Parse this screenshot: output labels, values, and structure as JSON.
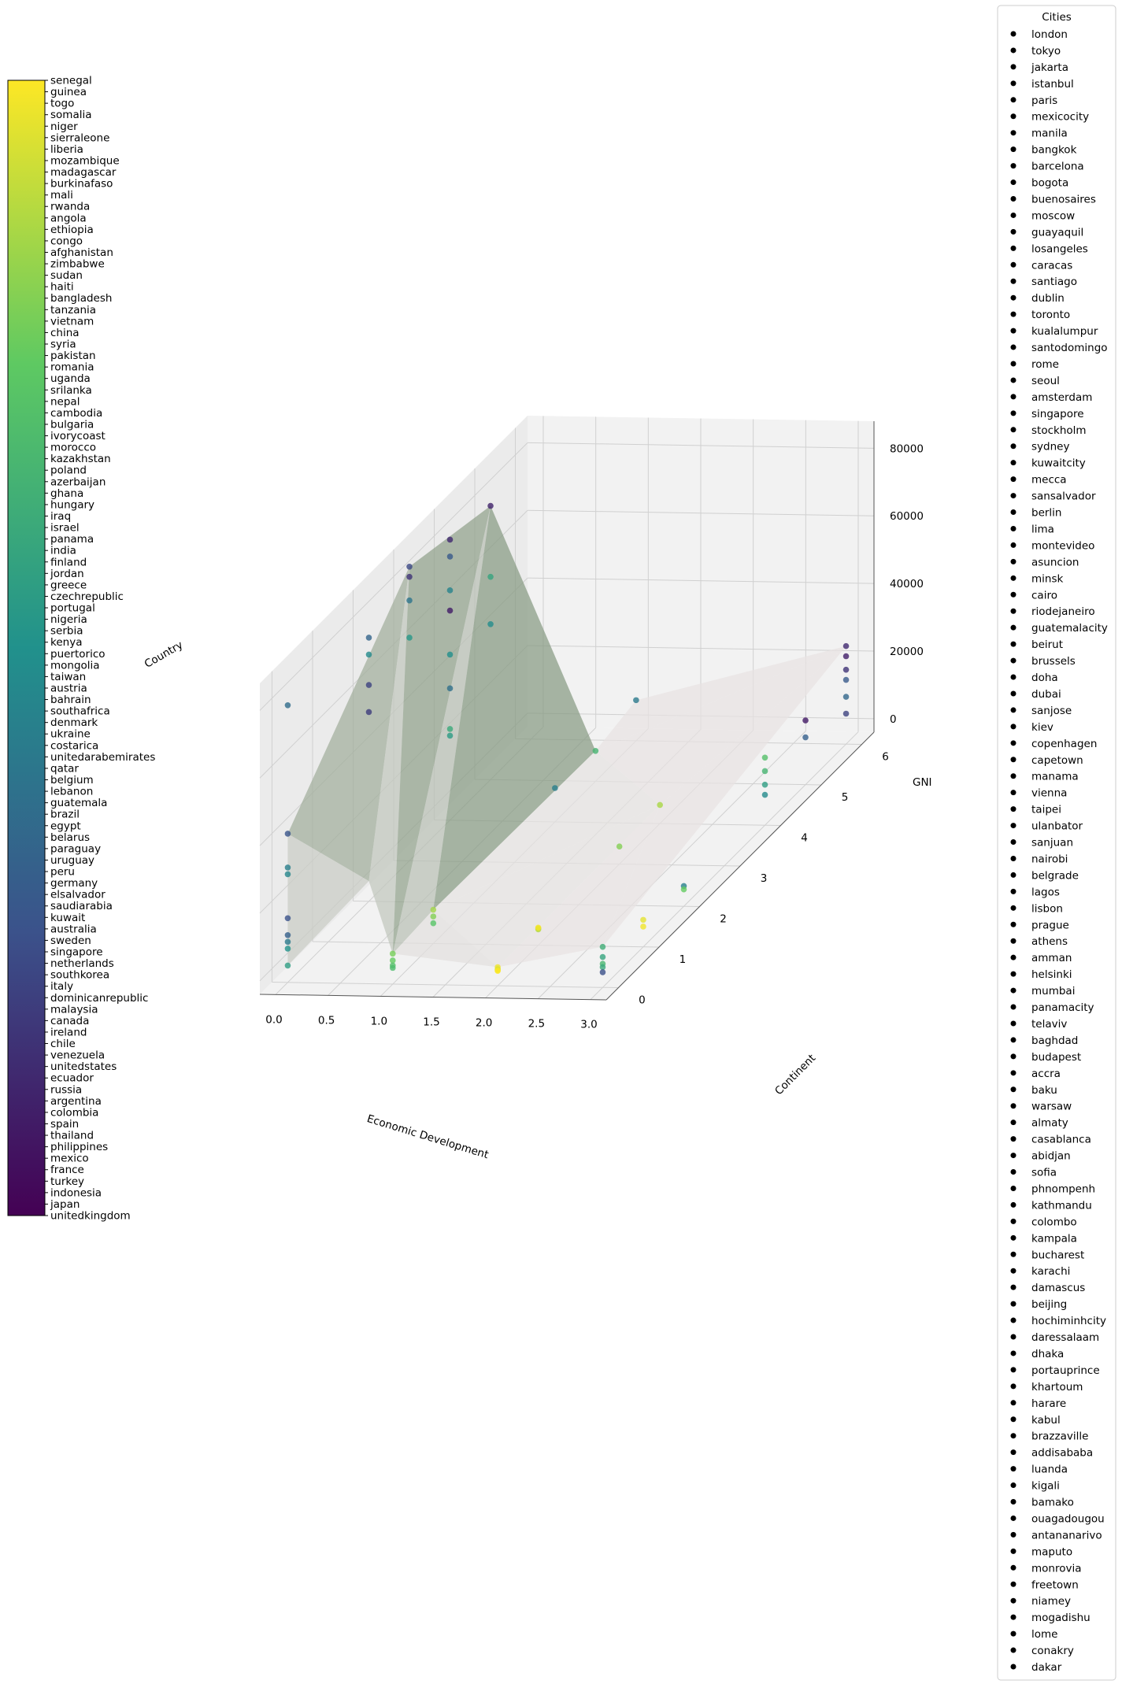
{
  "chart_data": {
    "type": "scatter",
    "subtype": "3d-scatter-with-surface",
    "title": "",
    "xlabel": "Economic Development",
    "ylabel": "Continent",
    "zlabel": "GNI",
    "colorbar_label": "Country",
    "legend_title": "Cities",
    "legend_placement": "right, outside plot",
    "grid": true,
    "xlim": [
      -0.15,
      3.15
    ],
    "ylim": [
      -0.3,
      6.3
    ],
    "zlim": [
      -4000,
      88000
    ],
    "xticks": [
      "0.0",
      "0.5",
      "1.0",
      "1.5",
      "2.0",
      "2.5",
      "3.0"
    ],
    "yticks": [
      "0",
      "1",
      "2",
      "3",
      "4",
      "5",
      "6"
    ],
    "zticks": [
      "0",
      "20000",
      "40000",
      "60000",
      "80000"
    ],
    "xtick_values": [
      0,
      0.5,
      1,
      1.5,
      2,
      2.5,
      3
    ],
    "ytick_values": [
      0,
      1,
      2,
      3,
      4,
      5,
      6
    ],
    "ztick_values": [
      0,
      20000,
      40000,
      60000,
      80000
    ],
    "colormap": [
      "#440154",
      "#3b528b",
      "#21918c",
      "#5ec962",
      "#fde725"
    ],
    "surface_color": "#90c690",
    "countries": [
      "unitedkingdom",
      "japan",
      "indonesia",
      "turkey",
      "france",
      "mexico",
      "philippines",
      "thailand",
      "spain",
      "colombia",
      "argentina",
      "russia",
      "ecuador",
      "unitedstates",
      "venezuela",
      "chile",
      "ireland",
      "canada",
      "malaysia",
      "dominicanrepublic",
      "italy",
      "southkorea",
      "netherlands",
      "singapore",
      "sweden",
      "australia",
      "kuwait",
      "saudiarabia",
      "elsalvador",
      "germany",
      "peru",
      "uruguay",
      "paraguay",
      "belarus",
      "egypt",
      "brazil",
      "guatemala",
      "lebanon",
      "belgium",
      "qatar",
      "unitedarabemirates",
      "costarica",
      "ukraine",
      "denmark",
      "southafrica",
      "bahrain",
      "austria",
      "taiwan",
      "mongolia",
      "puertorico",
      "kenya",
      "serbia",
      "nigeria",
      "portugal",
      "czechrepublic",
      "greece",
      "jordan",
      "finland",
      "india",
      "panama",
      "israel",
      "iraq",
      "hungary",
      "ghana",
      "azerbaijan",
      "poland",
      "kazakhstan",
      "morocco",
      "ivorycoast",
      "bulgaria",
      "cambodia",
      "nepal",
      "srilanka",
      "uganda",
      "romania",
      "pakistan",
      "syria",
      "china",
      "vietnam",
      "tanzania",
      "bangladesh",
      "haiti",
      "sudan",
      "zimbabwe",
      "afghanistan",
      "congo",
      "ethiopia",
      "angola",
      "rwanda",
      "mali",
      "burkinafaso",
      "madagascar",
      "mozambique",
      "liberia",
      "sierraleone",
      "niger",
      "somalia",
      "togo",
      "guinea",
      "senegal"
    ],
    "cities": [
      "london",
      "tokyo",
      "jakarta",
      "istanbul",
      "paris",
      "mexicocity",
      "manila",
      "bangkok",
      "barcelona",
      "bogota",
      "buenosaires",
      "moscow",
      "guayaquil",
      "losangeles",
      "caracas",
      "santiago",
      "dublin",
      "toronto",
      "kualalumpur",
      "santodomingo",
      "rome",
      "seoul",
      "amsterdam",
      "singapore",
      "stockholm",
      "sydney",
      "kuwaitcity",
      "mecca",
      "sansalvador",
      "berlin",
      "lima",
      "montevideo",
      "asuncion",
      "minsk",
      "cairo",
      "riodejaneiro",
      "guatemalacity",
      "beirut",
      "brussels",
      "doha",
      "dubai",
      "sanjose",
      "kiev",
      "copenhagen",
      "capetown",
      "manama",
      "vienna",
      "taipei",
      "ulanbator",
      "sanjuan",
      "nairobi",
      "belgrade",
      "lagos",
      "lisbon",
      "prague",
      "athens",
      "amman",
      "helsinki",
      "mumbai",
      "panamacity",
      "telaviv",
      "baghdad",
      "budapest",
      "accra",
      "baku",
      "warsaw",
      "almaty",
      "casablanca",
      "abidjan",
      "sofia",
      "phnompenh",
      "kathmandu",
      "colombo",
      "kampala",
      "bucharest",
      "karachi",
      "damascus",
      "beijing",
      "hochiminhcity",
      "daressalaam",
      "dhaka",
      "portauprince",
      "khartoum",
      "harare",
      "kabul",
      "brazzaville",
      "addisababa",
      "luanda",
      "kigali",
      "bamako",
      "ouagadougou",
      "antananarivo",
      "maputo",
      "monrovia",
      "freetown",
      "niamey",
      "mogadishu",
      "lome",
      "conakry",
      "dakar"
    ],
    "points": [
      {
        "x": 0,
        "y": 0,
        "z": 78000,
        "c": 35
      },
      {
        "x": 0,
        "y": 0,
        "z": 40000,
        "c": 26
      },
      {
        "x": 0,
        "y": 0,
        "z": 30000,
        "c": 42
      },
      {
        "x": 0,
        "y": 0,
        "z": 28000,
        "c": 45
      },
      {
        "x": 0,
        "y": 0,
        "z": 15000,
        "c": 25
      },
      {
        "x": 0,
        "y": 0,
        "z": 10000,
        "c": 30
      },
      {
        "x": 0,
        "y": 0,
        "z": 8000,
        "c": 40
      },
      {
        "x": 0,
        "y": 0,
        "z": 6000,
        "c": 50
      },
      {
        "x": 0,
        "y": 0,
        "z": 1000,
        "c": 55
      },
      {
        "x": 0,
        "y": 2,
        "z": 52000,
        "c": 18
      },
      {
        "x": 0,
        "y": 2,
        "z": 60000,
        "c": 20
      },
      {
        "x": 0,
        "y": 2,
        "z": 74000,
        "c": 32
      },
      {
        "x": 0,
        "y": 2,
        "z": 69000,
        "c": 47
      },
      {
        "x": 0,
        "y": 3,
        "z": 80000,
        "c": 15
      },
      {
        "x": 0,
        "y": 3,
        "z": 83000,
        "c": 22
      },
      {
        "x": 0,
        "y": 3,
        "z": 73000,
        "c": 38
      },
      {
        "x": 0,
        "y": 3,
        "z": 62000,
        "c": 52
      },
      {
        "x": 0,
        "y": 4,
        "z": 79000,
        "c": 12
      },
      {
        "x": 0,
        "y": 4,
        "z": 74000,
        "c": 28
      },
      {
        "x": 0,
        "y": 4,
        "z": 64000,
        "c": 44
      },
      {
        "x": 0,
        "y": 4,
        "z": 58000,
        "c": 8
      },
      {
        "x": 0,
        "y": 4,
        "z": 45000,
        "c": 49
      },
      {
        "x": 0,
        "y": 4,
        "z": 35000,
        "c": 36
      },
      {
        "x": 0,
        "y": 4,
        "z": 23000,
        "c": 60
      },
      {
        "x": 0,
        "y": 4,
        "z": 21000,
        "c": 54
      },
      {
        "x": 0,
        "y": 5,
        "z": 77000,
        "c": 10
      },
      {
        "x": 0,
        "y": 5,
        "z": 56000,
        "c": 58
      },
      {
        "x": 0,
        "y": 5,
        "z": 42000,
        "c": 48
      },
      {
        "x": 1,
        "y": 0,
        "z": 5000,
        "c": 78
      },
      {
        "x": 1,
        "y": 0,
        "z": 3000,
        "c": 75
      },
      {
        "x": 1,
        "y": 0,
        "z": 1500,
        "c": 70
      },
      {
        "x": 1,
        "y": 0,
        "z": 800,
        "c": 68
      },
      {
        "x": 1,
        "y": 1,
        "z": 6000,
        "c": 85
      },
      {
        "x": 1,
        "y": 1,
        "z": 4000,
        "c": 80
      },
      {
        "x": 1,
        "y": 1,
        "z": 2000,
        "c": 72
      },
      {
        "x": 1,
        "y": 5,
        "z": 5000,
        "c": 65
      },
      {
        "x": 1,
        "y": 4,
        "z": 6000,
        "c": 42
      },
      {
        "x": 1,
        "y": 6,
        "z": 8000,
        "c": 40
      },
      {
        "x": 2,
        "y": 0,
        "z": 1500,
        "c": 97
      },
      {
        "x": 2,
        "y": 0,
        "z": 900,
        "c": 93
      },
      {
        "x": 2,
        "y": 0,
        "z": 600,
        "c": 96
      },
      {
        "x": 2,
        "y": 0,
        "z": 400,
        "c": 99
      },
      {
        "x": 2,
        "y": 1,
        "z": 1000,
        "c": 90
      },
      {
        "x": 2,
        "y": 1,
        "z": 700,
        "c": 88
      },
      {
        "x": 2,
        "y": 1,
        "z": 1200,
        "c": 98
      },
      {
        "x": 2,
        "y": 3,
        "z": 1200,
        "c": 80
      },
      {
        "x": 2,
        "y": 4,
        "z": 1500,
        "c": 86
      },
      {
        "x": 3,
        "y": 0,
        "z": 8000,
        "c": 62
      },
      {
        "x": 3,
        "y": 0,
        "z": 5000,
        "c": 58
      },
      {
        "x": 3,
        "y": 0,
        "z": 3000,
        "c": 66
      },
      {
        "x": 3,
        "y": 0,
        "z": 2000,
        "c": 60
      },
      {
        "x": 3,
        "y": 0,
        "z": 500,
        "c": 24
      },
      {
        "x": 3,
        "y": 1,
        "z": 4000,
        "c": 95
      },
      {
        "x": 3,
        "y": 1,
        "z": 2000,
        "c": 97
      },
      {
        "x": 3,
        "y": 2,
        "z": 2000,
        "c": 43
      },
      {
        "x": 3,
        "y": 2,
        "z": 1000,
        "c": 75
      },
      {
        "x": 3,
        "y": 4,
        "z": 16000,
        "c": 70
      },
      {
        "x": 3,
        "y": 4,
        "z": 12000,
        "c": 65
      },
      {
        "x": 3,
        "y": 4,
        "z": 8000,
        "c": 55
      },
      {
        "x": 3,
        "y": 4,
        "z": 5000,
        "c": 47
      },
      {
        "x": 3,
        "y": 5,
        "z": 15000,
        "c": 7
      },
      {
        "x": 3,
        "y": 5,
        "z": 10000,
        "c": 30
      },
      {
        "x": 3,
        "y": 6,
        "z": 25000,
        "c": 12
      },
      {
        "x": 3,
        "y": 6,
        "z": 22000,
        "c": 9
      },
      {
        "x": 3,
        "y": 6,
        "z": 18000,
        "c": 15
      },
      {
        "x": 3,
        "y": 6,
        "z": 15000,
        "c": 28
      },
      {
        "x": 3,
        "y": 6,
        "z": 10000,
        "c": 33
      },
      {
        "x": 3,
        "y": 6,
        "z": 5000,
        "c": 20
      }
    ],
    "surface_triangles": [
      {
        "v": [
          [
            0,
            0,
            40000
          ],
          [
            0,
            3,
            83000
          ],
          [
            0,
            2,
            2000
          ]
        ],
        "shade": 0.45
      },
      {
        "v": [
          [
            0,
            3,
            83000
          ],
          [
            1,
            0,
            5000
          ],
          [
            0,
            2,
            2000
          ]
        ],
        "shade": 0.25
      },
      {
        "v": [
          [
            0,
            3,
            83000
          ],
          [
            0,
            5,
            77000
          ],
          [
            1,
            0,
            5000
          ]
        ],
        "shade": 0.55
      },
      {
        "v": [
          [
            0,
            5,
            77000
          ],
          [
            1,
            1,
            6000
          ],
          [
            1,
            0,
            5000
          ]
        ],
        "shade": 0.3
      },
      {
        "v": [
          [
            0,
            5,
            77000
          ],
          [
            1,
            5,
            5000
          ],
          [
            1,
            1,
            6000
          ]
        ],
        "shade": 0.6
      },
      {
        "v": [
          [
            0,
            0,
            40000
          ],
          [
            0,
            2,
            2000
          ],
          [
            0,
            0,
            1000
          ]
        ],
        "shade": 0.2
      },
      {
        "v": [
          [
            1,
            0,
            5000
          ],
          [
            2,
            0,
            1500
          ],
          [
            1,
            1,
            6000
          ]
        ],
        "shade": 0.05
      },
      {
        "v": [
          [
            1,
            1,
            6000
          ],
          [
            2,
            0,
            1500
          ],
          [
            2,
            4,
            1500
          ]
        ],
        "shade": 0.03
      },
      {
        "v": [
          [
            1,
            5,
            5000
          ],
          [
            2,
            4,
            1500
          ],
          [
            1,
            1,
            6000
          ]
        ],
        "shade": 0.03
      },
      {
        "v": [
          [
            2,
            0,
            1500
          ],
          [
            3,
            0,
            8000
          ],
          [
            2,
            4,
            1500
          ]
        ],
        "shade": 0.02
      },
      {
        "v": [
          [
            2,
            4,
            1500
          ],
          [
            3,
            0,
            8000
          ],
          [
            3,
            6,
            25000
          ]
        ],
        "shade": 0.02
      },
      {
        "v": [
          [
            1,
            5,
            5000
          ],
          [
            1,
            6,
            8000
          ],
          [
            3,
            6,
            25000
          ]
        ],
        "shade": 0.02
      },
      {
        "v": [
          [
            1,
            5,
            5000
          ],
          [
            3,
            6,
            25000
          ],
          [
            2,
            4,
            1500
          ]
        ],
        "shade": 0.02
      }
    ]
  }
}
